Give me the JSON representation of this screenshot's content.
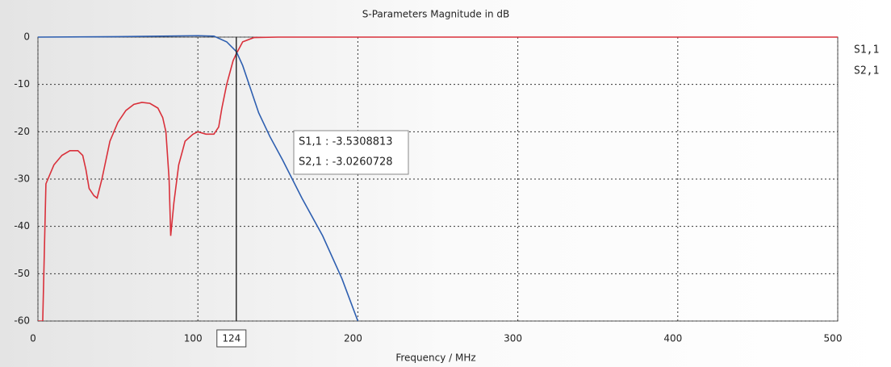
{
  "chart_data": {
    "type": "line",
    "title": "S-Parameters Magnitude in dB",
    "xlabel": "Frequency / MHz",
    "xlim": [
      0,
      500
    ],
    "xticks": [
      0,
      100,
      200,
      300,
      400,
      500
    ],
    "ylim": [
      -60,
      0
    ],
    "yticks": [
      0,
      -10,
      -20,
      -30,
      -40,
      -50,
      -60
    ],
    "grid": true,
    "legend": "right",
    "series": [
      {
        "name": "S1,1",
        "color": "#d9303a",
        "x": [
          0,
          3,
          5,
          10,
          15,
          20,
          25,
          28,
          30,
          32,
          35,
          37,
          40,
          45,
          50,
          55,
          60,
          65,
          70,
          75,
          78,
          80,
          82,
          83,
          85,
          88,
          92,
          97,
          100,
          105,
          110,
          113,
          115,
          118,
          122,
          124,
          128,
          135,
          150,
          500
        ],
        "values": [
          -60,
          -60,
          -31,
          -27,
          -25,
          -24,
          -24,
          -25,
          -28,
          -32,
          -33.5,
          -34,
          -30,
          -22,
          -18,
          -15.5,
          -14.2,
          -13.8,
          -14,
          -15,
          -17,
          -20,
          -30,
          -42,
          -35,
          -27,
          -22,
          -20.5,
          -20,
          -20.5,
          -20.5,
          -19,
          -15,
          -10,
          -5,
          -3.53,
          -1,
          -0.1,
          0,
          0
        ]
      },
      {
        "name": "S2,1",
        "color": "#2e5fb0",
        "x": [
          0,
          50,
          100,
          110,
          118,
          124,
          128,
          133,
          138,
          145,
          153,
          165,
          178,
          190,
          200
        ],
        "values": [
          0,
          0.1,
          0.3,
          0.2,
          -1,
          -3.03,
          -6,
          -11,
          -16,
          -21,
          -26,
          -34,
          -42,
          -51,
          -60
        ]
      }
    ],
    "marker": {
      "x": 124
    },
    "annotations": [
      "S1,1 : -3.5308813",
      "S2,1 : -3.0260728"
    ]
  }
}
